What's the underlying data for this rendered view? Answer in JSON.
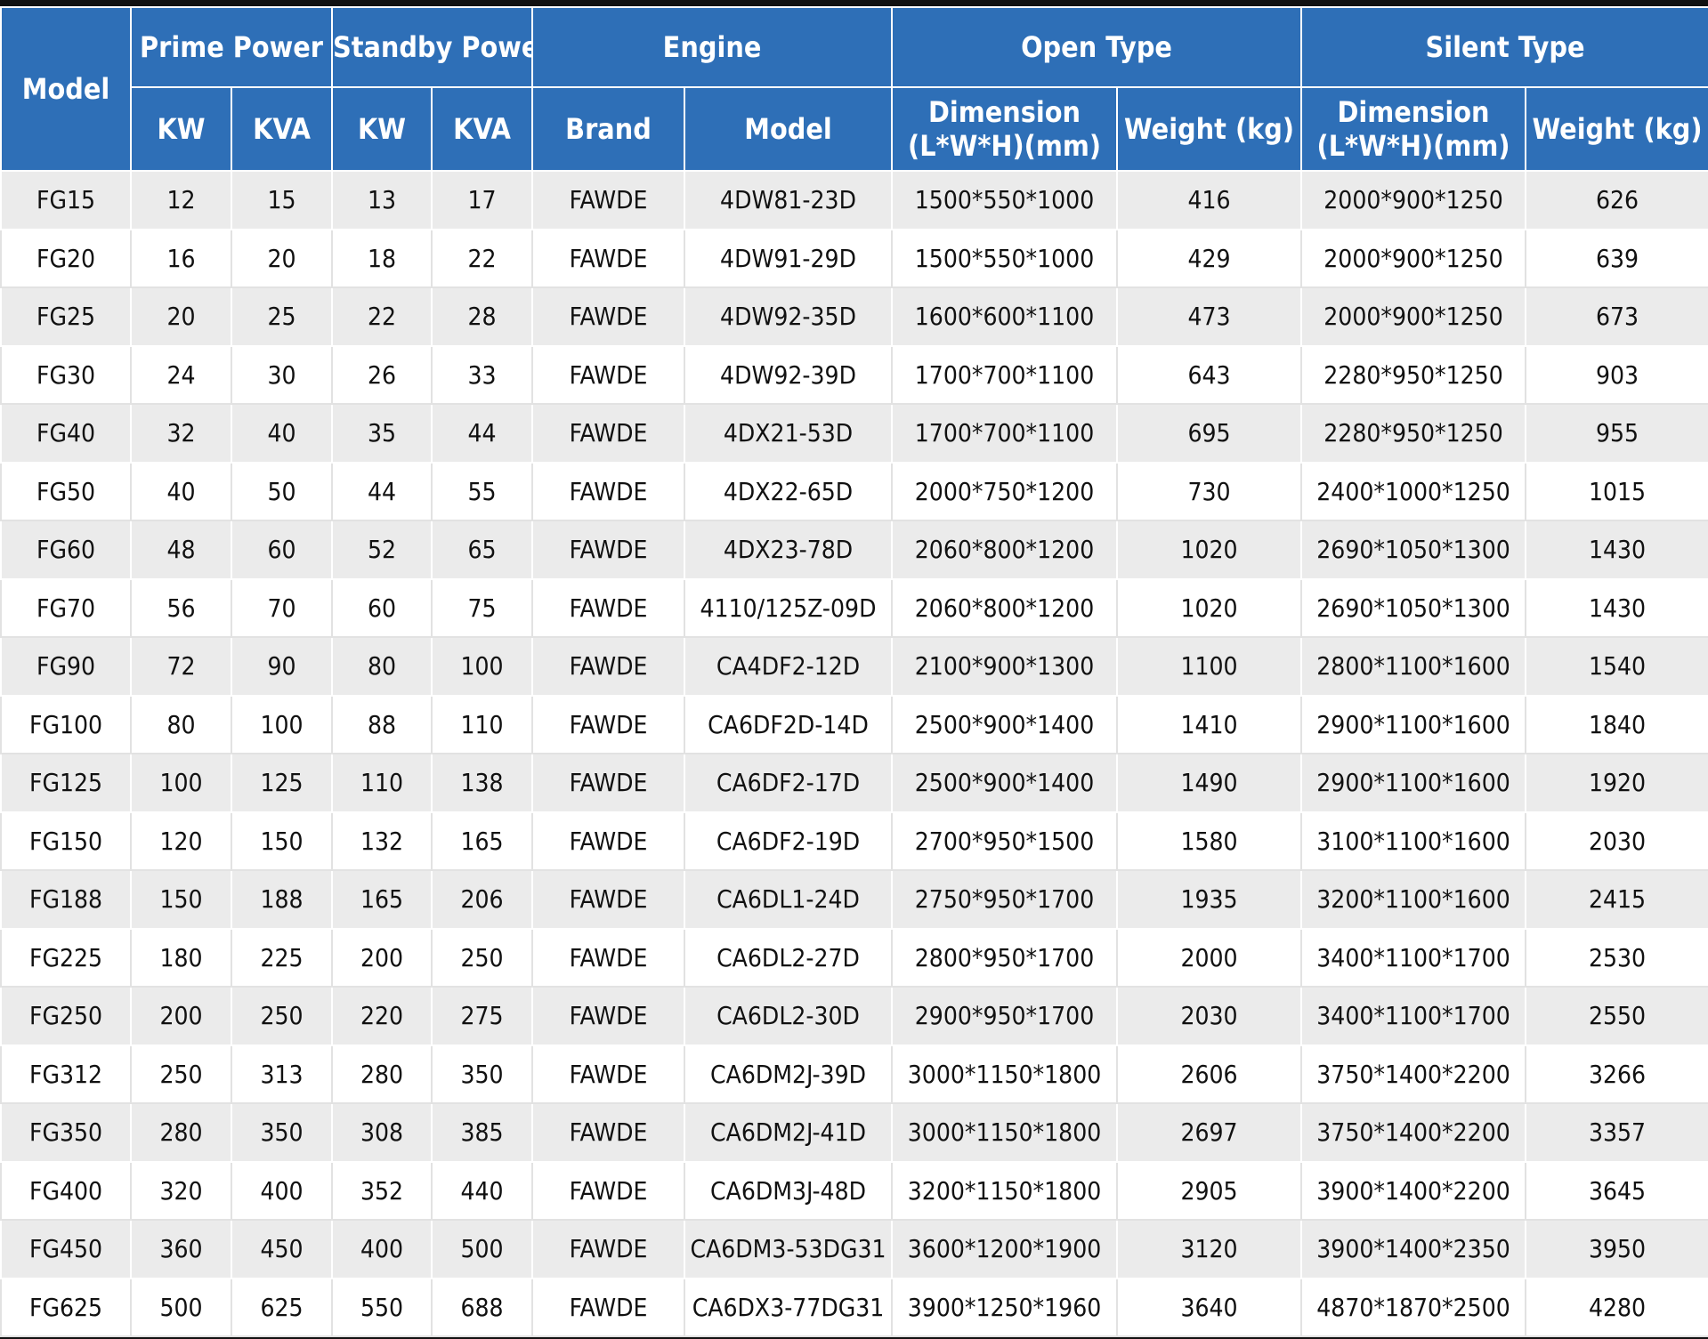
{
  "header": {
    "model": "Model",
    "prime_power": "Prime Power",
    "standby_power": "Standby Power",
    "engine": "Engine",
    "open_type": "Open Type",
    "silent_type": "Silent Type",
    "sub": {
      "prime_kw": "KW",
      "prime_kva": "KVA",
      "standby_kw": "KW",
      "standby_kva": "KVA",
      "brand": "Brand",
      "engine_model": "Model",
      "open_dimension_line1": "Dimension",
      "open_dimension_line2": "(L*W*H)(mm)",
      "open_weight": "Weight (kg)",
      "silent_dimension_line1": "Dimension",
      "silent_dimension_line2": "(L*W*H)(mm)",
      "silent_weight": "Weight (kg)"
    }
  },
  "rows": [
    [
      "FG15",
      "12",
      "15",
      "13",
      "17",
      "FAWDE",
      "4DW81-23D",
      "1500*550*1000",
      "416",
      "2000*900*1250",
      "626"
    ],
    [
      "FG20",
      "16",
      "20",
      "18",
      "22",
      "FAWDE",
      "4DW91-29D",
      "1500*550*1000",
      "429",
      "2000*900*1250",
      "639"
    ],
    [
      "FG25",
      "20",
      "25",
      "22",
      "28",
      "FAWDE",
      "4DW92-35D",
      "1600*600*1100",
      "473",
      "2000*900*1250",
      "673"
    ],
    [
      "FG30",
      "24",
      "30",
      "26",
      "33",
      "FAWDE",
      "4DW92-39D",
      "1700*700*1100",
      "643",
      "2280*950*1250",
      "903"
    ],
    [
      "FG40",
      "32",
      "40",
      "35",
      "44",
      "FAWDE",
      "4DX21-53D",
      "1700*700*1100",
      "695",
      "2280*950*1250",
      "955"
    ],
    [
      "FG50",
      "40",
      "50",
      "44",
      "55",
      "FAWDE",
      "4DX22-65D",
      "2000*750*1200",
      "730",
      "2400*1000*1250",
      "1015"
    ],
    [
      "FG60",
      "48",
      "60",
      "52",
      "65",
      "FAWDE",
      "4DX23-78D",
      "2060*800*1200",
      "1020",
      "2690*1050*1300",
      "1430"
    ],
    [
      "FG70",
      "56",
      "70",
      "60",
      "75",
      "FAWDE",
      "4110/125Z-09D",
      "2060*800*1200",
      "1020",
      "2690*1050*1300",
      "1430"
    ],
    [
      "FG90",
      "72",
      "90",
      "80",
      "100",
      "FAWDE",
      "CA4DF2-12D",
      "2100*900*1300",
      "1100",
      "2800*1100*1600",
      "1540"
    ],
    [
      "FG100",
      "80",
      "100",
      "88",
      "110",
      "FAWDE",
      "CA6DF2D-14D",
      "2500*900*1400",
      "1410",
      "2900*1100*1600",
      "1840"
    ],
    [
      "FG125",
      "100",
      "125",
      "110",
      "138",
      "FAWDE",
      "CA6DF2-17D",
      "2500*900*1400",
      "1490",
      "2900*1100*1600",
      "1920"
    ],
    [
      "FG150",
      "120",
      "150",
      "132",
      "165",
      "FAWDE",
      "CA6DF2-19D",
      "2700*950*1500",
      "1580",
      "3100*1100*1600",
      "2030"
    ],
    [
      "FG188",
      "150",
      "188",
      "165",
      "206",
      "FAWDE",
      "CA6DL1-24D",
      "2750*950*1700",
      "1935",
      "3200*1100*1600",
      "2415"
    ],
    [
      "FG225",
      "180",
      "225",
      "200",
      "250",
      "FAWDE",
      "CA6DL2-27D",
      "2800*950*1700",
      "2000",
      "3400*1100*1700",
      "2530"
    ],
    [
      "FG250",
      "200",
      "250",
      "220",
      "275",
      "FAWDE",
      "CA6DL2-30D",
      "2900*950*1700",
      "2030",
      "3400*1100*1700",
      "2550"
    ],
    [
      "FG312",
      "250",
      "313",
      "280",
      "350",
      "FAWDE",
      "CA6DM2J-39D",
      "3000*1150*1800",
      "2606",
      "3750*1400*2200",
      "3266"
    ],
    [
      "FG350",
      "280",
      "350",
      "308",
      "385",
      "FAWDE",
      "CA6DM2J-41D",
      "3000*1150*1800",
      "2697",
      "3750*1400*2200",
      "3357"
    ],
    [
      "FG400",
      "320",
      "400",
      "352",
      "440",
      "FAWDE",
      "CA6DM3J-48D",
      "3200*1150*1800",
      "2905",
      "3900*1400*2200",
      "3645"
    ],
    [
      "FG450",
      "360",
      "450",
      "400",
      "500",
      "FAWDE",
      "CA6DM3-53DG31",
      "3600*1200*1900",
      "3120",
      "3900*1400*2350",
      "3950"
    ],
    [
      "FG625",
      "500",
      "625",
      "550",
      "688",
      "FAWDE",
      "CA6DX3-77DG31",
      "3900*1250*1960",
      "3640",
      "4870*1870*2500",
      "4280"
    ]
  ]
}
